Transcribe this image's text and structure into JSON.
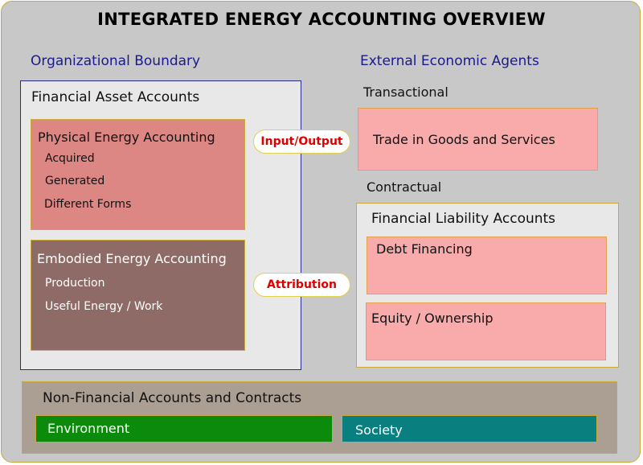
{
  "title": "INTEGRATED ENERGY ACCOUNTING OVERVIEW",
  "organizational": {
    "heading": "Organizational Boundary",
    "financial_asset_accounts": "Financial Asset Accounts",
    "physical": {
      "title": "Physical Energy Accounting",
      "items": [
        "Acquired",
        "Generated",
        "Different Forms"
      ]
    },
    "embodied": {
      "title": "Embodied Energy Accounting",
      "items": [
        "Production",
        "Useful Energy / Work"
      ]
    }
  },
  "connectors": {
    "input_output": "Input/Output",
    "attribution": "Attribution"
  },
  "external": {
    "heading": "External Economic Agents",
    "transactional": "Transactional",
    "trade": "Trade in Goods and Services",
    "contractual": "Contractual",
    "liability": {
      "title": "Financial Liability Accounts",
      "debt": "Debt Financing",
      "equity": "Equity / Ownership"
    }
  },
  "non_financial": {
    "title": "Non-Financial Accounts and Contracts",
    "environment": "Environment",
    "society": "Society"
  },
  "colors": {
    "background": "#c8c8c8",
    "heading_blue": "#1a1a8c",
    "physical": "#dd8784",
    "embodied": "#8f6b68",
    "pink": "#f9aaaa",
    "connector_text": "#dd0000",
    "environment": "#0b8a0b",
    "society": "#0a7f80",
    "non_financial": "#ab9f94"
  }
}
